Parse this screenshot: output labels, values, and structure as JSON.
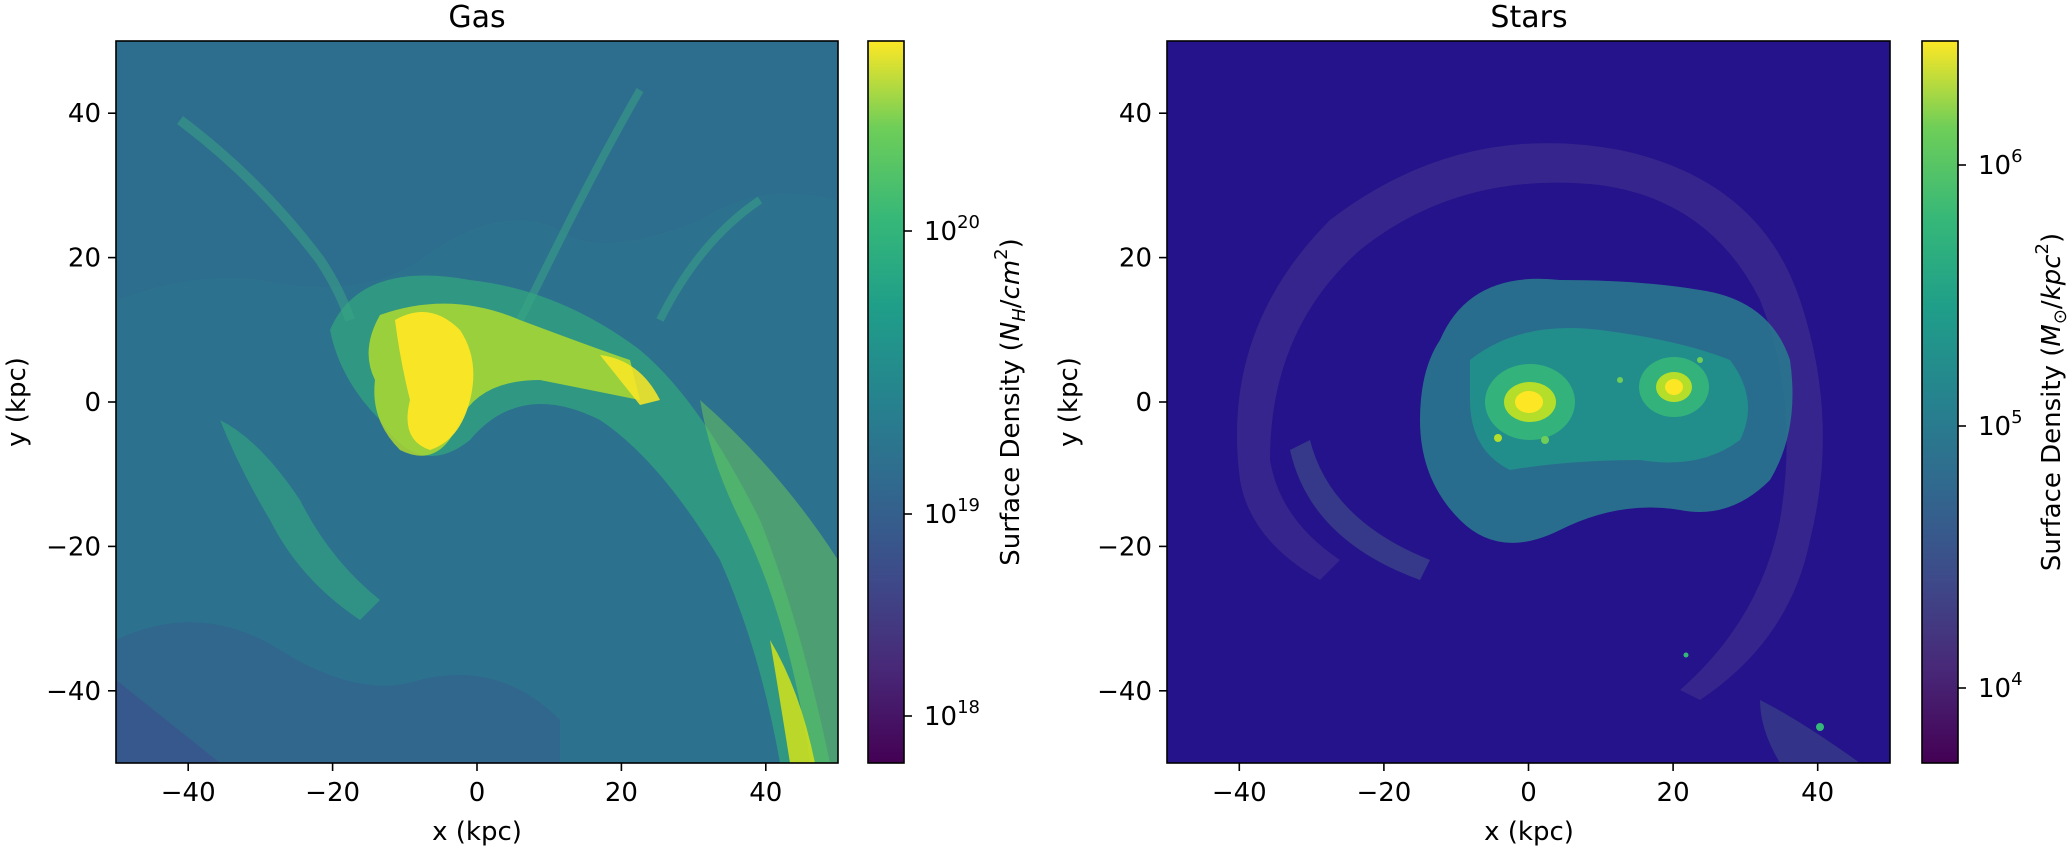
{
  "chart_data": [
    {
      "type": "heatmap",
      "title": "Gas",
      "xlabel": "x (kpc)",
      "ylabel": "y (kpc)",
      "xlim": [
        -50,
        50
      ],
      "ylim": [
        -50,
        50
      ],
      "xticks": [
        -40,
        -20,
        0,
        20,
        40
      ],
      "yticks": [
        -40,
        -20,
        0,
        20,
        40
      ],
      "xtick_labels": [
        "−40",
        "−20",
        "0",
        "20",
        "40"
      ],
      "ytick_labels": [
        "−40",
        "−20",
        "0",
        "20",
        "40"
      ],
      "colormap": "viridis",
      "colorbar": {
        "label": "Surface Density (N_H/cm^2)",
        "label_parts": {
          "prefix": "Surface Density (",
          "sym1": "N",
          "sub1": "H",
          "slash": "/",
          "sym2": "cm",
          "sup2": "2",
          "suffix": ")"
        },
        "scale": "log",
        "range": [
          6.5e+17,
          6.5e+20
        ],
        "ticks": [
          1e+18,
          1e+19,
          1e+20
        ],
        "tick_labels": [
          {
            "base": "10",
            "exp": "18"
          },
          {
            "base": "10",
            "exp": "19"
          },
          {
            "base": "10",
            "exp": "20"
          }
        ]
      },
      "features": [
        {
          "x": -3,
          "y": 3,
          "level": 0.95,
          "r": 14
        },
        {
          "x": 2,
          "y": -6,
          "level": 0.92,
          "r": 6
        },
        {
          "x": 18,
          "y": 3,
          "level": 0.85,
          "r": 6
        },
        {
          "x": 35,
          "y": -25,
          "level": 0.75,
          "r": 8
        },
        {
          "x": 43,
          "y": -45,
          "level": 0.8,
          "r": 6
        }
      ]
    },
    {
      "type": "heatmap",
      "title": "Stars",
      "xlabel": "x (kpc)",
      "ylabel": "y (kpc)",
      "xlim": [
        -50,
        50
      ],
      "ylim": [
        -50,
        50
      ],
      "xticks": [
        -40,
        -20,
        0,
        20,
        40
      ],
      "yticks": [
        -40,
        -20,
        0,
        20,
        40
      ],
      "xtick_labels": [
        "−40",
        "−20",
        "0",
        "20",
        "40"
      ],
      "ytick_labels": [
        "−40",
        "−20",
        "0",
        "20",
        "40"
      ],
      "colormap": "viridis",
      "colorbar": {
        "label": "Surface Density (M_⊙/kpc^2)",
        "label_parts": {
          "prefix": "Surface Density (",
          "sym1": "M",
          "sub1": "⊙",
          "slash": "/",
          "sym2": "kpc",
          "sup2": "2",
          "suffix": ")"
        },
        "scale": "log",
        "range": [
          5000,
          2800000
        ],
        "ticks": [
          10000,
          100000,
          1000000
        ],
        "tick_labels": [
          {
            "base": "10",
            "exp": "4"
          },
          {
            "base": "10",
            "exp": "5"
          },
          {
            "base": "10",
            "exp": "6"
          }
        ]
      },
      "features": [
        {
          "x": 0,
          "y": 0,
          "level": 1.0,
          "r": 4
        },
        {
          "x": 20,
          "y": 2,
          "level": 0.95,
          "r": 3
        },
        {
          "x": 10,
          "y": 0,
          "level": 0.55,
          "r": 22
        }
      ]
    }
  ]
}
